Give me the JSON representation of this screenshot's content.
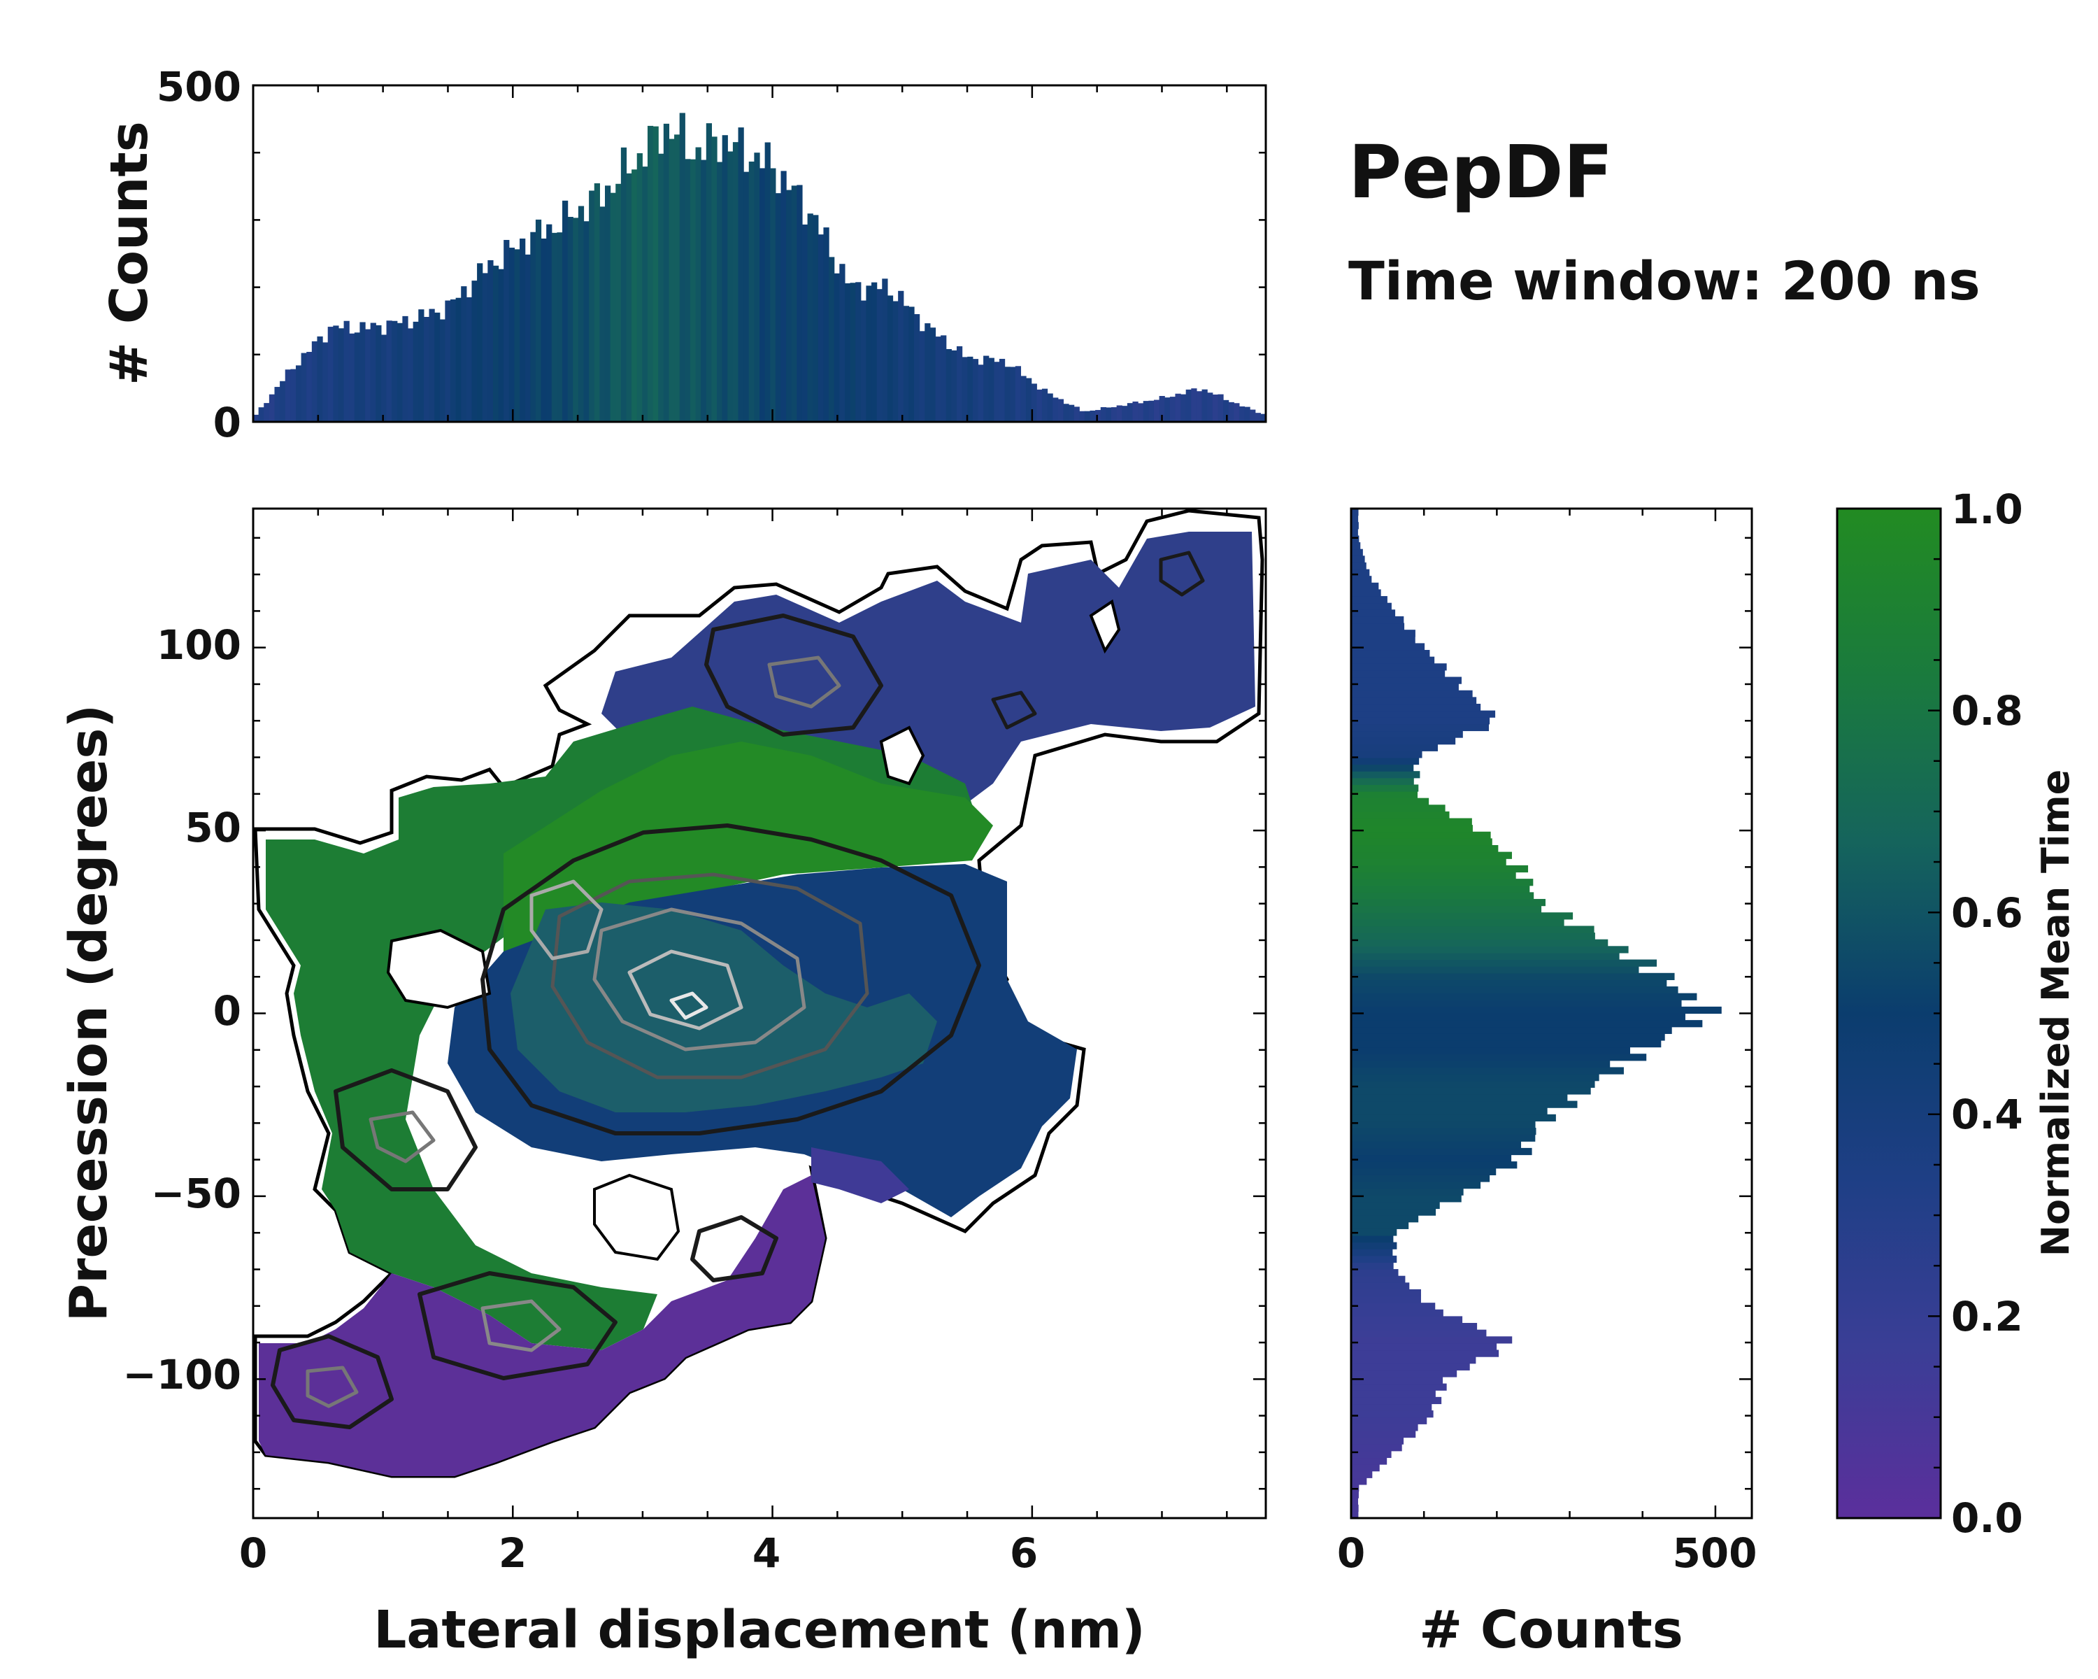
{
  "chart_data": [
    {
      "id": "top-histogram",
      "type": "bar",
      "title": "",
      "xlabel": "",
      "ylabel": "# Counts",
      "xlim": [
        0,
        7.8
      ],
      "ylim": [
        0,
        500
      ],
      "yticks": [
        "0",
        "500"
      ],
      "x": [
        0.0,
        0.3,
        0.6,
        0.9,
        1.2,
        1.5,
        1.8,
        2.1,
        2.4,
        2.7,
        3.0,
        3.2,
        3.4,
        3.6,
        3.8,
        4.0,
        4.3,
        4.6,
        4.9,
        5.2,
        5.5,
        5.8,
        6.1,
        6.4,
        6.7,
        7.0,
        7.3,
        7.6,
        7.8
      ],
      "counts": [
        5,
        80,
        140,
        140,
        150,
        170,
        230,
        270,
        300,
        340,
        400,
        440,
        400,
        420,
        400,
        380,
        310,
        200,
        200,
        140,
        95,
        90,
        45,
        15,
        25,
        35,
        50,
        25,
        10
      ],
      "mean_time": [
        0.3,
        0.35,
        0.38,
        0.4,
        0.42,
        0.45,
        0.48,
        0.5,
        0.55,
        0.6,
        0.65,
        0.62,
        0.6,
        0.58,
        0.55,
        0.52,
        0.5,
        0.48,
        0.45,
        0.42,
        0.4,
        0.38,
        0.35,
        0.33,
        0.3,
        0.3,
        0.3,
        0.3,
        0.3
      ]
    },
    {
      "id": "right-histogram",
      "type": "bar",
      "orientation": "horizontal",
      "xlabel": "# Counts",
      "ylabel": "",
      "xlim": [
        0,
        550
      ],
      "ylim": [
        -138,
        138
      ],
      "xticks": [
        "0",
        "500"
      ],
      "y": [
        -130,
        -120,
        -110,
        -100,
        -90,
        -80,
        -70,
        -60,
        -50,
        -40,
        -30,
        -20,
        -10,
        0,
        10,
        20,
        30,
        40,
        50,
        60,
        70,
        80,
        90,
        100,
        110,
        120,
        130
      ],
      "counts": [
        10,
        60,
        110,
        130,
        220,
        110,
        60,
        60,
        150,
        230,
        260,
        330,
        400,
        490,
        430,
        350,
        260,
        230,
        180,
        90,
        90,
        200,
        150,
        100,
        60,
        25,
        10
      ],
      "mean_time": [
        0.1,
        0.12,
        0.15,
        0.15,
        0.15,
        0.2,
        0.25,
        0.55,
        0.55,
        0.5,
        0.55,
        0.55,
        0.5,
        0.5,
        0.55,
        0.7,
        0.8,
        0.9,
        0.95,
        0.9,
        0.4,
        0.35,
        0.35,
        0.35,
        0.35,
        0.35,
        0.35
      ]
    },
    {
      "id": "main-2d-histogram",
      "type": "heatmap",
      "title": "PepDF",
      "subtitle": "Time window: 200 ns",
      "xlabel": "Lateral displacement (nm)",
      "ylabel": "Precession (degrees)",
      "xlim": [
        0,
        7.8
      ],
      "ylim": [
        -138,
        138
      ],
      "xticks": [
        "0",
        "2",
        "4",
        "6"
      ],
      "yticks": [
        "−100",
        "−50",
        "0",
        "50",
        "100"
      ],
      "colorbar": {
        "label": "Normalized Mean Time",
        "range": [
          0.0,
          1.0
        ],
        "ticks": [
          "0.0",
          "0.2",
          "0.4",
          "0.6",
          "0.8",
          "1.0"
        ],
        "colors": [
          "#5b2f9c",
          "#3a3e96",
          "#1f3f86",
          "#0b3d6e",
          "#15645c",
          "#1a7a3e",
          "#228b22"
        ]
      },
      "regions": [
        {
          "name": "upper-blue",
          "x": [
            3.0,
            6.0
          ],
          "y": [
            60,
            110
          ],
          "mean_time": 0.35
        },
        {
          "name": "far-right-blue",
          "x": [
            6.0,
            7.8
          ],
          "y": [
            60,
            135
          ],
          "mean_time": 0.3
        },
        {
          "name": "left-green",
          "x": [
            0.0,
            2.5
          ],
          "y": [
            -70,
            50
          ],
          "mean_time": 0.85
        },
        {
          "name": "center-green",
          "x": [
            2.0,
            5.5
          ],
          "y": [
            20,
            70
          ],
          "mean_time": 0.9
        },
        {
          "name": "center-blue",
          "x": [
            2.5,
            6.5
          ],
          "y": [
            -60,
            20
          ],
          "mean_time": 0.45
        },
        {
          "name": "lower-purple",
          "x": [
            0.0,
            4.3
          ],
          "y": [
            -130,
            -60
          ],
          "mean_time": 0.12
        }
      ],
      "density_peaks": [
        {
          "x": 2.3,
          "y": 25
        },
        {
          "x": 3.2,
          "y": 20
        },
        {
          "x": 2.9,
          "y": 5
        },
        {
          "x": 3.3,
          "y": -8
        },
        {
          "x": 4.0,
          "y": -5
        },
        {
          "x": 1.0,
          "y": -35
        },
        {
          "x": 2.0,
          "y": -88
        },
        {
          "x": 0.6,
          "y": -108
        },
        {
          "x": 3.7,
          "y": -70
        },
        {
          "x": 4.4,
          "y": 90
        }
      ]
    }
  ]
}
